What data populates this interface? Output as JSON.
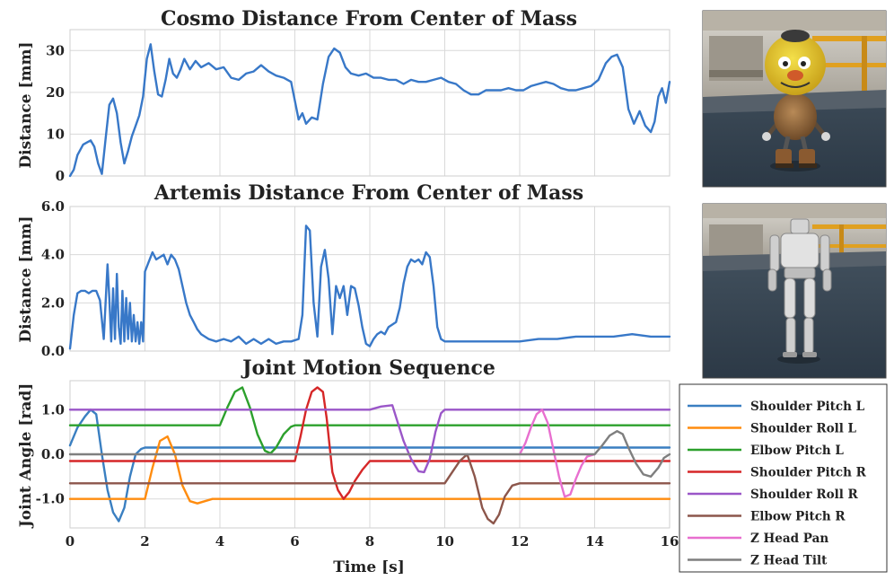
{
  "chart_data": [
    {
      "type": "line",
      "id": "cosmo",
      "title": "Cosmo Distance From Center of Mass",
      "xlabel": "",
      "ylabel": "Distance [mm]",
      "xlim": [
        0,
        16
      ],
      "ylim": [
        0,
        35
      ],
      "yticks": [
        0,
        10,
        20,
        30
      ],
      "ytick_labels": [
        "0",
        "10",
        "20",
        "30"
      ],
      "grid": true,
      "series": [
        {
          "name": "Cosmo",
          "color": "#3878c8",
          "x": [
            0,
            0.1,
            0.2,
            0.35,
            0.45,
            0.55,
            0.65,
            0.75,
            0.85,
            0.95,
            1.05,
            1.15,
            1.25,
            1.35,
            1.45,
            1.55,
            1.65,
            1.75,
            1.85,
            1.95,
            2.05,
            2.15,
            2.25,
            2.35,
            2.45,
            2.55,
            2.65,
            2.75,
            2.85,
            2.95,
            3.05,
            3.2,
            3.35,
            3.5,
            3.7,
            3.9,
            4.1,
            4.3,
            4.5,
            4.7,
            4.9,
            5.1,
            5.3,
            5.5,
            5.7,
            5.9,
            6.1,
            6.2,
            6.3,
            6.45,
            6.6,
            6.75,
            6.9,
            7.05,
            7.2,
            7.35,
            7.5,
            7.7,
            7.9,
            8.1,
            8.3,
            8.5,
            8.7,
            8.9,
            9.1,
            9.3,
            9.5,
            9.7,
            9.9,
            10.1,
            10.3,
            10.5,
            10.7,
            10.9,
            11.1,
            11.3,
            11.5,
            11.7,
            11.9,
            12.1,
            12.3,
            12.5,
            12.7,
            12.9,
            13.1,
            13.3,
            13.5,
            13.7,
            13.9,
            14.1,
            14.3,
            14.45,
            14.6,
            14.75,
            14.9,
            15.05,
            15.2,
            15.35,
            15.5,
            15.6,
            15.7,
            15.8,
            15.9,
            16.0
          ],
          "y": [
            0,
            1.5,
            5,
            7.5,
            8,
            8.5,
            7,
            3,
            0.5,
            9,
            17,
            18.5,
            15,
            8,
            3,
            6,
            9.5,
            12,
            14.5,
            19,
            28,
            31.5,
            25,
            19.5,
            19,
            23,
            28,
            24.5,
            23.5,
            25.5,
            28,
            25.5,
            27.5,
            26,
            27,
            25.5,
            26,
            23.5,
            23,
            24.5,
            25,
            26.5,
            25,
            24,
            23.5,
            22.5,
            13.5,
            15,
            12.5,
            14,
            13.5,
            22,
            28.5,
            30.5,
            29.5,
            26,
            24.5,
            24,
            24.5,
            23.5,
            23.5,
            23,
            23,
            22,
            23,
            22.5,
            22.5,
            23,
            23.5,
            22.5,
            22,
            20.5,
            19.5,
            19.5,
            20.5,
            20.5,
            20.5,
            21,
            20.5,
            20.5,
            21.5,
            22,
            22.5,
            22,
            21,
            20.5,
            20.5,
            21,
            21.5,
            23,
            27,
            28.5,
            29,
            26,
            16,
            12.5,
            15.5,
            12,
            10.5,
            13,
            19,
            21,
            17.5,
            22.5
          ]
        }
      ]
    },
    {
      "type": "line",
      "id": "artemis",
      "title": "Artemis Distance From Center of Mass",
      "xlabel": "",
      "ylabel": "Distance [mm]",
      "xlim": [
        0,
        16
      ],
      "ylim": [
        0,
        6
      ],
      "yticks": [
        0,
        2,
        4,
        6
      ],
      "ytick_labels": [
        "0.0",
        "2.0",
        "4.0",
        "6.0"
      ],
      "grid": true,
      "series": [
        {
          "name": "Artemis",
          "color": "#3878c8",
          "x": [
            0,
            0.1,
            0.2,
            0.3,
            0.4,
            0.5,
            0.6,
            0.7,
            0.8,
            0.9,
            1.0,
            1.05,
            1.1,
            1.15,
            1.2,
            1.25,
            1.3,
            1.35,
            1.4,
            1.45,
            1.5,
            1.55,
            1.6,
            1.65,
            1.7,
            1.75,
            1.8,
            1.85,
            1.9,
            1.95,
            2.0,
            2.1,
            2.2,
            2.3,
            2.4,
            2.5,
            2.6,
            2.7,
            2.8,
            2.9,
            3.0,
            3.1,
            3.2,
            3.3,
            3.4,
            3.5,
            3.7,
            3.9,
            4.1,
            4.3,
            4.5,
            4.7,
            4.9,
            5.1,
            5.3,
            5.5,
            5.7,
            5.9,
            6.1,
            6.2,
            6.3,
            6.4,
            6.5,
            6.6,
            6.7,
            6.8,
            6.9,
            7.0,
            7.1,
            7.2,
            7.3,
            7.4,
            7.5,
            7.6,
            7.7,
            7.8,
            7.9,
            8.0,
            8.1,
            8.2,
            8.3,
            8.4,
            8.5,
            8.6,
            8.7,
            8.8,
            8.9,
            9.0,
            9.1,
            9.2,
            9.3,
            9.4,
            9.5,
            9.6,
            9.7,
            9.8,
            9.9,
            10.0,
            10.2,
            10.5,
            11.0,
            11.5,
            12.0,
            12.5,
            13.0,
            13.5,
            14.0,
            14.5,
            15.0,
            15.5,
            16.0
          ],
          "y": [
            0.1,
            1.5,
            2.4,
            2.5,
            2.5,
            2.4,
            2.5,
            2.5,
            2.1,
            0.5,
            3.6,
            2.2,
            0.4,
            2.6,
            0.5,
            3.2,
            1.0,
            0.3,
            2.5,
            0.4,
            2.2,
            0.5,
            2.0,
            0.4,
            1.5,
            0.4,
            1.2,
            0.3,
            1.2,
            0.4,
            3.3,
            3.7,
            4.1,
            3.8,
            3.9,
            4.0,
            3.6,
            4.0,
            3.8,
            3.4,
            2.7,
            2.0,
            1.5,
            1.2,
            0.9,
            0.7,
            0.5,
            0.4,
            0.5,
            0.4,
            0.6,
            0.3,
            0.5,
            0.3,
            0.5,
            0.3,
            0.4,
            0.4,
            0.5,
            1.5,
            5.2,
            5.0,
            2.0,
            0.6,
            3.5,
            4.2,
            3.0,
            0.7,
            2.7,
            2.2,
            2.7,
            1.5,
            2.7,
            2.6,
            1.9,
            1.0,
            0.3,
            0.2,
            0.5,
            0.7,
            0.8,
            0.7,
            1.0,
            1.1,
            1.2,
            1.8,
            2.8,
            3.5,
            3.8,
            3.7,
            3.8,
            3.6,
            4.1,
            3.9,
            2.7,
            1.0,
            0.5,
            0.4,
            0.4,
            0.4,
            0.4,
            0.4,
            0.4,
            0.5,
            0.5,
            0.6,
            0.6,
            0.6,
            0.7,
            0.6,
            0.6
          ]
        }
      ]
    },
    {
      "type": "line",
      "id": "joints",
      "title": "Joint Motion Sequence",
      "xlabel": "Time [s]",
      "ylabel": "Joint Angle [rad]",
      "xlim": [
        0,
        16
      ],
      "ylim": [
        -1.65,
        1.65
      ],
      "xticks": [
        0,
        2,
        4,
        6,
        8,
        10,
        12,
        14,
        16
      ],
      "yticks": [
        -1,
        0,
        1
      ],
      "ytick_labels": [
        "-1.0",
        "0.0",
        "1.0"
      ],
      "grid": true,
      "series": [
        {
          "name": "Shoulder Pitch L",
          "color": "#3a7fc1",
          "x": [
            0,
            0.2,
            0.4,
            0.55,
            0.7,
            0.85,
            1.0,
            1.15,
            1.3,
            1.45,
            1.6,
            1.75,
            1.9,
            2.0,
            16
          ],
          "y": [
            0.2,
            0.6,
            0.85,
            1.0,
            0.9,
            0.0,
            -0.8,
            -1.3,
            -1.5,
            -1.2,
            -0.5,
            0.0,
            0.12,
            0.15,
            0.15
          ]
        },
        {
          "name": "Shoulder Roll L",
          "color": "#ff8c0f",
          "x": [
            0,
            2.0,
            2.2,
            2.4,
            2.6,
            2.8,
            3.0,
            3.2,
            3.4,
            3.6,
            3.8,
            4.0,
            16
          ],
          "y": [
            -1.0,
            -1.0,
            -0.3,
            0.3,
            0.4,
            0.0,
            -0.7,
            -1.05,
            -1.1,
            -1.05,
            -1.0,
            -1.0,
            -1.0
          ]
        },
        {
          "name": "Elbow Pitch L",
          "color": "#2ca02c",
          "x": [
            0,
            4.0,
            4.2,
            4.4,
            4.6,
            4.8,
            5.0,
            5.2,
            5.35,
            5.5,
            5.7,
            5.9,
            6.0,
            16
          ],
          "y": [
            0.65,
            0.65,
            1.05,
            1.4,
            1.5,
            1.05,
            0.45,
            0.08,
            0.02,
            0.15,
            0.45,
            0.62,
            0.65,
            0.65
          ]
        },
        {
          "name": "Shoulder Pitch R",
          "color": "#d62728",
          "x": [
            0,
            6.0,
            6.15,
            6.3,
            6.45,
            6.6,
            6.75,
            6.85,
            7.0,
            7.15,
            7.3,
            7.45,
            7.6,
            7.8,
            8.0,
            16
          ],
          "y": [
            -0.15,
            -0.15,
            0.4,
            1.0,
            1.4,
            1.5,
            1.4,
            0.8,
            -0.4,
            -0.8,
            -1.0,
            -0.85,
            -0.6,
            -0.35,
            -0.15,
            -0.15
          ]
        },
        {
          "name": "Shoulder Roll R",
          "color": "#9a56c8",
          "x": [
            0,
            8.0,
            8.3,
            8.6,
            8.75,
            8.9,
            9.1,
            9.3,
            9.45,
            9.6,
            9.75,
            9.9,
            10.0,
            16
          ],
          "y": [
            1.0,
            1.0,
            1.07,
            1.1,
            0.7,
            0.3,
            -0.1,
            -0.38,
            -0.4,
            -0.1,
            0.5,
            0.92,
            1.0,
            1.0
          ]
        },
        {
          "name": "Elbow Pitch R",
          "color": "#8c564b",
          "x": [
            0,
            10.0,
            10.2,
            10.4,
            10.6,
            10.8,
            11.0,
            11.15,
            11.3,
            11.45,
            11.6,
            11.8,
            12.0,
            16
          ],
          "y": [
            -0.65,
            -0.65,
            -0.4,
            -0.15,
            0.0,
            -0.5,
            -1.2,
            -1.45,
            -1.55,
            -1.35,
            -0.95,
            -0.7,
            -0.65,
            -0.65
          ]
        },
        {
          "name": "Z Head Pan",
          "color": "#e86fcf",
          "x": [
            12.0,
            12.15,
            12.3,
            12.45,
            12.6,
            12.75,
            12.9,
            13.05,
            13.2,
            13.35,
            13.5,
            13.65,
            13.8,
            14.0
          ],
          "y": [
            0.0,
            0.25,
            0.6,
            0.9,
            1.0,
            0.7,
            0.1,
            -0.5,
            -0.95,
            -0.9,
            -0.55,
            -0.25,
            -0.05,
            0.0
          ]
        },
        {
          "name": "Z Head Tilt",
          "color": "#7f7f7f",
          "x": [
            0,
            14.0,
            14.2,
            14.4,
            14.6,
            14.75,
            14.9,
            15.1,
            15.3,
            15.5,
            15.7,
            15.85,
            16.0
          ],
          "y": [
            0.0,
            0.0,
            0.2,
            0.42,
            0.52,
            0.45,
            0.15,
            -0.2,
            -0.45,
            -0.5,
            -0.3,
            -0.08,
            0.0
          ]
        }
      ]
    }
  ],
  "legend": {
    "placement": "bottom-right",
    "entries": [
      {
        "label": "Shoulder Pitch L",
        "color": "#3a7fc1"
      },
      {
        "label": "Shoulder Roll L",
        "color": "#ff8c0f"
      },
      {
        "label": "Elbow Pitch L",
        "color": "#2ca02c"
      },
      {
        "label": "Shoulder Pitch R",
        "color": "#d62728"
      },
      {
        "label": "Shoulder Roll R",
        "color": "#9a56c8"
      },
      {
        "label": "Elbow Pitch R",
        "color": "#8c564b"
      },
      {
        "label": "Z Head Pan",
        "color": "#e86fcf"
      },
      {
        "label": "Z Head Tilt",
        "color": "#7f7f7f"
      }
    ]
  },
  "images": [
    {
      "subject": "cosmo-robot",
      "description_icon": "robot-photo-cosmo"
    },
    {
      "subject": "artemis-robot",
      "description_icon": "robot-photo-artemis"
    }
  ]
}
